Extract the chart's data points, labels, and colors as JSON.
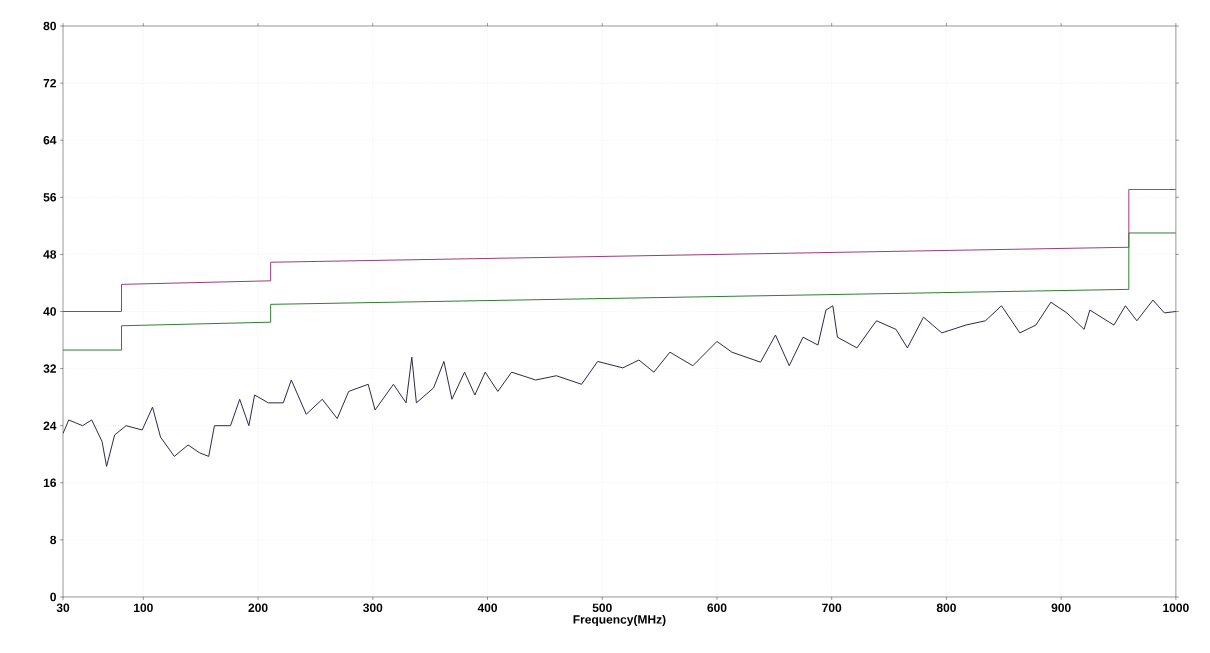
{
  "chart_data": {
    "type": "line",
    "xlabel": "Frequency(MHz)",
    "xlim": [
      30,
      1000
    ],
    "ylim": [
      0,
      80
    ],
    "xticks": [
      30,
      100,
      200,
      300,
      400,
      500,
      600,
      700,
      800,
      900,
      1000
    ],
    "yticks": [
      0,
      8,
      16,
      24,
      32,
      40,
      48,
      56,
      64,
      72,
      80
    ],
    "grid": true,
    "series": [
      {
        "color": "#a03a78",
        "x": [
          30,
          81,
          81,
          211,
          211,
          959,
          959,
          1000
        ],
        "values": [
          40,
          40,
          43.8,
          44.3,
          46.9,
          49,
          57.1,
          57.1
        ]
      },
      {
        "color": "#2e7d32",
        "x": [
          30,
          81,
          81,
          211,
          211,
          959,
          959,
          1000
        ],
        "values": [
          34.6,
          34.6,
          38,
          38.5,
          41,
          43.1,
          51,
          51
        ]
      },
      {
        "color": "#2a2a4a",
        "x": [
          30,
          35,
          47,
          55,
          64,
          68,
          75,
          85,
          99,
          108,
          115,
          127,
          139,
          149,
          157,
          162,
          176,
          184,
          192,
          197,
          209,
          222,
          229,
          242,
          256,
          269,
          279,
          296,
          302,
          318,
          329,
          334,
          338,
          353,
          362,
          369,
          380,
          389,
          398,
          409,
          421,
          442,
          460,
          482,
          496,
          518,
          532,
          545,
          559,
          579,
          600,
          613,
          638,
          651,
          663,
          675,
          688,
          695,
          701,
          705,
          722,
          739,
          756,
          766,
          780,
          796,
          817,
          834,
          848,
          864,
          878,
          891,
          905,
          920,
          925,
          946,
          956,
          966,
          980,
          990,
          1000
        ],
        "values": [
          22.9,
          24.8,
          24,
          24.8,
          21.8,
          18.3,
          22.7,
          24,
          23.4,
          26.6,
          22.4,
          19.7,
          21.3,
          20.2,
          19.7,
          24,
          24,
          27.7,
          24,
          28.3,
          27.2,
          27.2,
          30.4,
          25.6,
          27.7,
          25,
          28.8,
          29.8,
          26.2,
          29.8,
          27.2,
          33.6,
          27.2,
          29.3,
          33,
          27.7,
          31.5,
          28.3,
          31.5,
          28.8,
          31.5,
          30.4,
          31,
          29.8,
          33,
          32.1,
          33.2,
          31.5,
          34.3,
          32.4,
          35.8,
          34.3,
          32.9,
          36.7,
          32.4,
          36.4,
          35.3,
          40.2,
          40.8,
          36.4,
          34.9,
          38.7,
          37.5,
          34.9,
          39.2,
          37,
          38.1,
          38.7,
          40.8,
          37,
          38.1,
          41.3,
          39.8,
          37.5,
          40.2,
          38.1,
          40.8,
          38.7,
          41.6,
          39.8,
          40
        ]
      }
    ]
  }
}
